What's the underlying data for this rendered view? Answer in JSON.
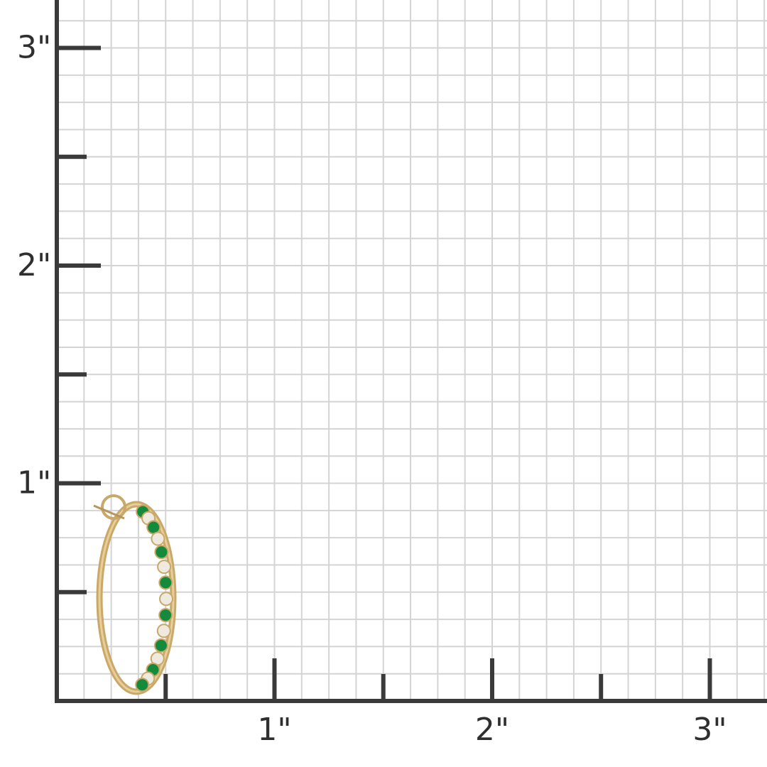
{
  "y_axis": {
    "labels": [
      "1\"",
      "2\"",
      "3\""
    ]
  },
  "x_axis": {
    "labels": [
      "1\"",
      "2\"",
      "3\""
    ]
  }
}
